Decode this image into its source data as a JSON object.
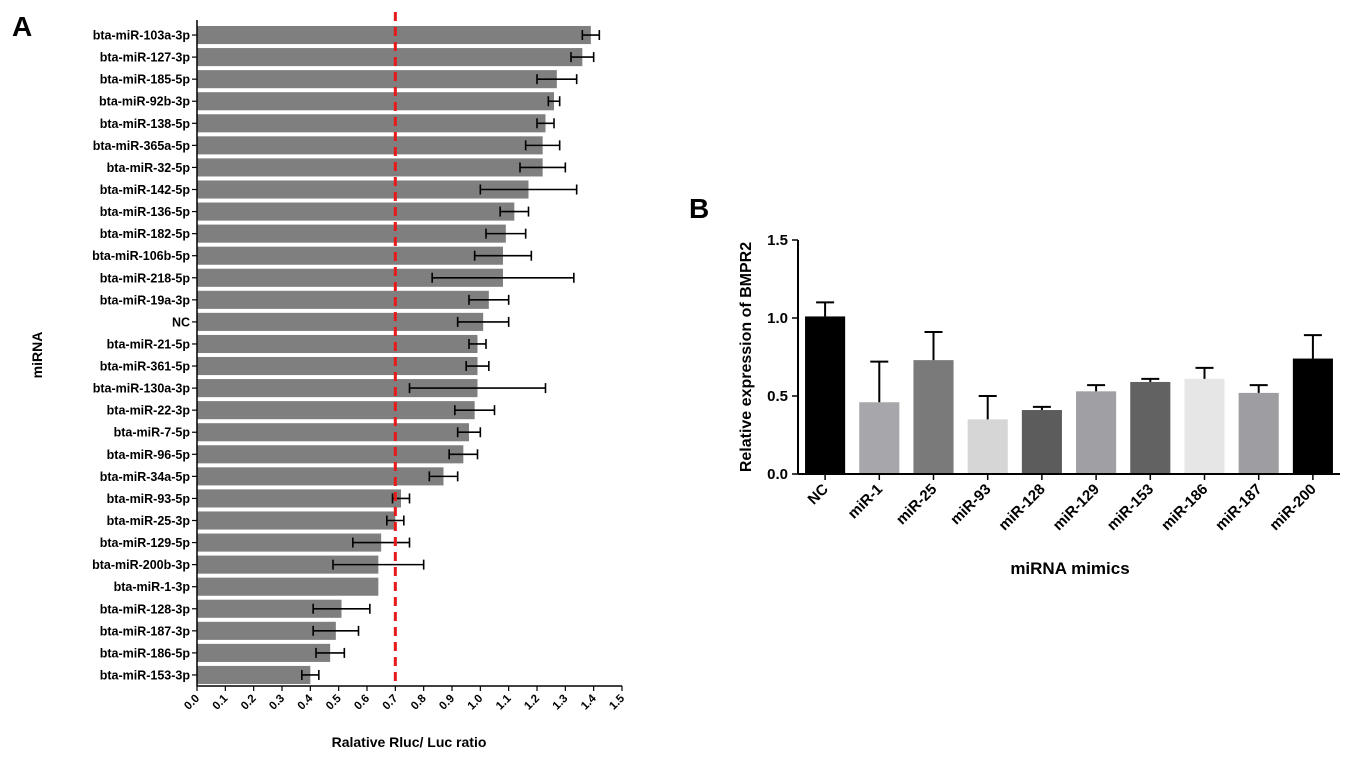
{
  "panels": {
    "a_letter": "A",
    "b_letter": "B"
  },
  "chart_data": [
    {
      "type": "bar",
      "orientation": "horizontal",
      "panel": "A",
      "categories": [
        "bta-miR-103a-3p",
        "bta-miR-127-3p",
        "bta-miR-185-5p",
        "bta-miR-92b-3p",
        "bta-miR-138-5p",
        "bta-miR-365a-5p",
        "bta-miR-32-5p",
        "bta-miR-142-5p",
        "bta-miR-136-5p",
        "bta-miR-182-5p",
        "bta-miR-106b-5p",
        "bta-miR-218-5p",
        "bta-miR-19a-3p",
        "NC",
        "bta-miR-21-5p",
        "bta-miR-361-5p",
        "bta-miR-130a-3p",
        "bta-miR-22-3p",
        "bta-miR-7-5p",
        "bta-miR-96-5p",
        "bta-miR-34a-5p",
        "bta-miR-93-5p",
        "bta-miR-25-3p",
        "bta-miR-129-5p",
        "bta-miR-200b-3p",
        "bta-miR-1-3p",
        "bta-miR-128-3p",
        "bta-miR-187-3p",
        "bta-miR-186-5p",
        "bta-miR-153-3p"
      ],
      "values": [
        1.39,
        1.36,
        1.27,
        1.26,
        1.23,
        1.22,
        1.22,
        1.17,
        1.12,
        1.09,
        1.08,
        1.08,
        1.03,
        1.01,
        0.99,
        0.99,
        0.99,
        0.98,
        0.96,
        0.94,
        0.87,
        0.72,
        0.7,
        0.65,
        0.64,
        0.64,
        0.51,
        0.49,
        0.47,
        0.4
      ],
      "errors": [
        0.03,
        0.04,
        0.07,
        0.02,
        0.03,
        0.06,
        0.08,
        0.17,
        0.05,
        0.07,
        0.1,
        0.25,
        0.07,
        0.09,
        0.03,
        0.04,
        0.24,
        0.07,
        0.04,
        0.05,
        0.05,
        0.03,
        0.03,
        0.1,
        0.16,
        0.0,
        0.1,
        0.08,
        0.05,
        0.03
      ],
      "xlabel": "Ralative Rluc/ Luc ratio",
      "ylabel": "miRNA",
      "xlim": [
        0.0,
        1.5
      ],
      "xticks": [
        "0.0",
        "0.1",
        "0.2",
        "0.3",
        "0.4",
        "0.5",
        "0.6",
        "0.7",
        "0.8",
        "0.9",
        "1.0",
        "1.1",
        "1.2",
        "1.3",
        "1.4",
        "1.5"
      ],
      "reference_line": 0.7,
      "bar_color": "#7f7f7f",
      "reference_line_color": "#e8191b"
    },
    {
      "type": "bar",
      "panel": "B",
      "categories": [
        "NC",
        "miR-1",
        "miR-25",
        "miR-93",
        "miR-128",
        "miR-129",
        "miR-153",
        "miR-186",
        "miR-187",
        "miR-200"
      ],
      "values": [
        1.01,
        0.46,
        0.73,
        0.35,
        0.41,
        0.53,
        0.59,
        0.61,
        0.52,
        0.74
      ],
      "errors": [
        0.09,
        0.26,
        0.18,
        0.15,
        0.02,
        0.04,
        0.02,
        0.07,
        0.05,
        0.15
      ],
      "colors": [
        "#000000",
        "#a7a7ab",
        "#7a7a7a",
        "#d6d6d6",
        "#5c5c5c",
        "#a0a0a4",
        "#626262",
        "#e6e6e6",
        "#9e9ea2",
        "#000000"
      ],
      "xlabel": "miRNA mimics",
      "ylabel": "Relative  expression of BMPR2",
      "ylim": [
        0.0,
        1.5
      ],
      "yticks": [
        "0.0",
        "0.5",
        "1.0",
        "1.5"
      ]
    }
  ]
}
